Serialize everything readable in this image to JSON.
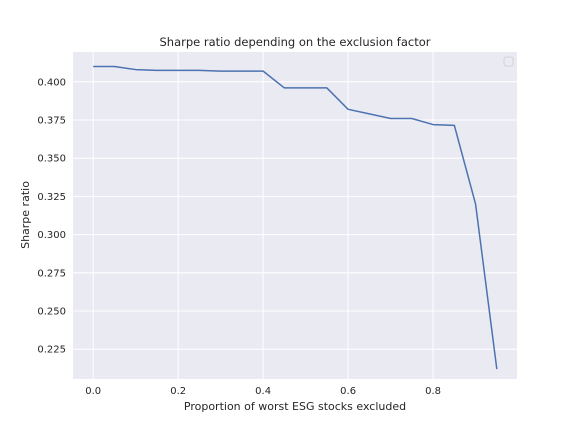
{
  "chart_data": {
    "type": "line",
    "title": "Sharpe ratio depending on the exclusion factor",
    "xlabel": "Proportion of worst ESG stocks excluded",
    "ylabel": "Sharpe ratio",
    "xlim": [
      -0.0475,
      0.9975
    ],
    "ylim": [
      0.2055,
      0.4195
    ],
    "xticks": [
      0.0,
      0.2,
      0.4,
      0.6,
      0.8
    ],
    "xtick_labels": [
      "0.0",
      "0.2",
      "0.4",
      "0.6",
      "0.8"
    ],
    "yticks": [
      0.225,
      0.25,
      0.275,
      0.3,
      0.325,
      0.35,
      0.375,
      0.4
    ],
    "ytick_labels": [
      "0.225",
      "0.250",
      "0.275",
      "0.300",
      "0.325",
      "0.350",
      "0.375",
      "0.400"
    ],
    "grid": true,
    "legend": "upper right, empty",
    "colors": {
      "background": "#eaeaf2",
      "grid": "#ffffff",
      "line": "#4c72b0",
      "text": "#262626"
    },
    "series": [
      {
        "x": [
          0.0,
          0.05,
          0.1,
          0.15,
          0.2,
          0.25,
          0.3,
          0.35,
          0.4,
          0.45,
          0.5,
          0.55,
          0.6,
          0.65,
          0.7,
          0.75,
          0.8,
          0.85,
          0.9,
          0.95
        ],
        "y": [
          0.41,
          0.41,
          0.408,
          0.4075,
          0.4075,
          0.4075,
          0.407,
          0.407,
          0.407,
          0.396,
          0.396,
          0.396,
          0.382,
          0.379,
          0.376,
          0.376,
          0.372,
          0.3715,
          0.32,
          0.212
        ]
      }
    ]
  }
}
